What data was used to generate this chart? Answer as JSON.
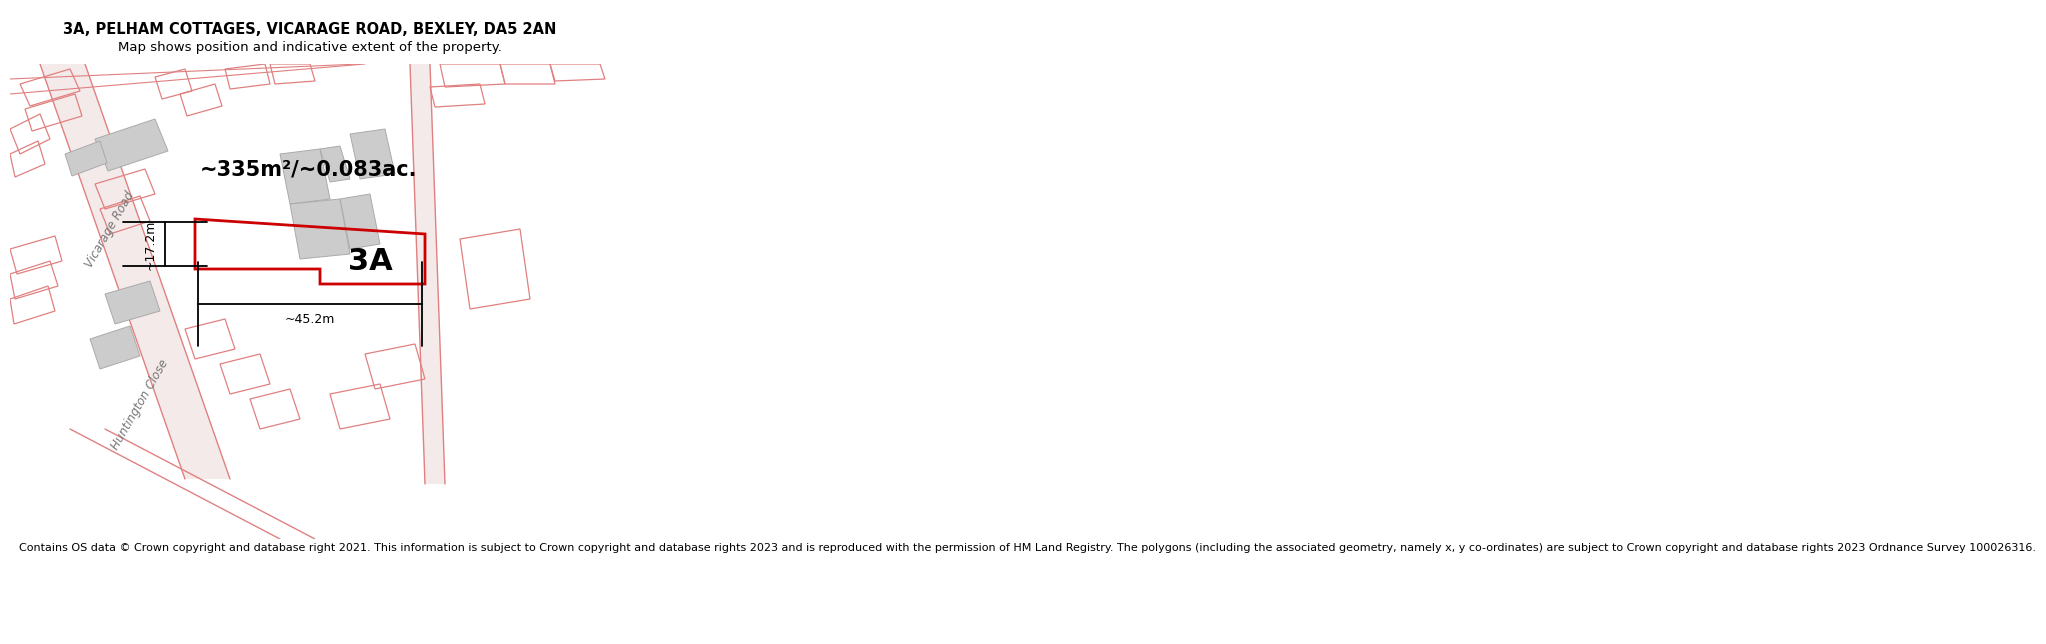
{
  "title_line1": "3A, PELHAM COTTAGES, VICARAGE ROAD, BEXLEY, DA5 2AN",
  "title_line2": "Map shows position and indicative extent of the property.",
  "footer": "Contains OS data © Crown copyright and database right 2021. This information is subject to Crown copyright and database rights 2023 and is reproduced with the permission of HM Land Registry. The polygons (including the associated geometry, namely x, y co-ordinates) are subject to Crown copyright and database rights 2023 Ordnance Survey 100026316.",
  "area_text": "~335m²/~0.083ac.",
  "label_3A": "3A",
  "dim_width": "~45.2m",
  "dim_height": "~17.2m",
  "road_label1": "Vicarage Road",
  "road_label2": "Huntington Close",
  "bg_color": "#ffffff",
  "pink": "#e08080",
  "red": "#cc0000",
  "gray": "#cccccc",
  "gray_edge": "#aaaaaa",
  "title_fontsize": 10.5,
  "subtitle_fontsize": 9.5,
  "footer_fontsize": 8.0
}
